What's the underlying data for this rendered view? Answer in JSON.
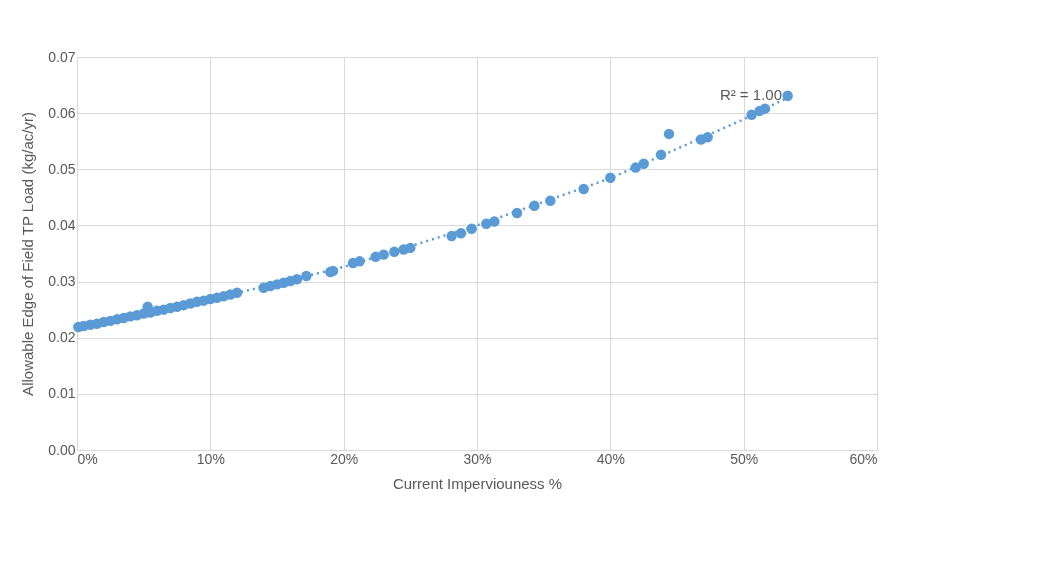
{
  "chart_data": {
    "type": "scatter",
    "xlabel": "Current Imperviouness %",
    "ylabel": "Allowable Edge of Field TP Load (kg/ac/yr)",
    "series": [
      {
        "marker": "circle",
        "color": "#5b9bd5",
        "x": [
          0.1,
          0.5,
          1,
          1.5,
          2,
          2.5,
          3,
          3.5,
          4,
          4.5,
          5,
          5.3,
          5.5,
          6,
          6.5,
          7,
          7.5,
          8,
          8.5,
          9,
          9.5,
          10,
          10.5,
          11,
          11.5,
          12,
          14,
          14.5,
          15,
          15.5,
          16,
          16.5,
          17.2,
          19,
          19.2,
          20.7,
          21.2,
          22.4,
          23,
          23.8,
          24.5,
          25,
          28.1,
          28.8,
          29.6,
          30.7,
          31.3,
          33,
          34.3,
          35.5,
          38,
          40,
          41.9,
          42.5,
          43.8,
          44.4,
          46.8,
          47.3,
          50.6,
          51.2,
          51.6,
          53.3
        ],
        "values": [
          0.0219,
          0.0221,
          0.0223,
          0.0225,
          0.0228,
          0.023,
          0.0233,
          0.0235,
          0.0238,
          0.024,
          0.0243,
          0.0255,
          0.0245,
          0.0248,
          0.025,
          0.0253,
          0.0255,
          0.0258,
          0.0261,
          0.0264,
          0.0266,
          0.0269,
          0.0271,
          0.0274,
          0.0277,
          0.028,
          0.0289,
          0.0292,
          0.0295,
          0.0298,
          0.0301,
          0.0304,
          0.031,
          0.0317,
          0.0319,
          0.0333,
          0.0336,
          0.0344,
          0.0348,
          0.0353,
          0.0357,
          0.036,
          0.0381,
          0.0386,
          0.0394,
          0.0403,
          0.0407,
          0.0422,
          0.0435,
          0.0444,
          0.0465,
          0.0485,
          0.0503,
          0.051,
          0.0526,
          0.0563,
          0.0553,
          0.0557,
          0.0597,
          0.0604,
          0.0608,
          0.0631
        ]
      },
      {
        "type": "line",
        "marker": "none",
        "color": "#5b9bd5",
        "line_style": "dotted",
        "x": [
          0,
          10,
          20,
          30,
          40,
          50,
          53.5
        ],
        "values": [
          0.0218,
          0.0268,
          0.0326,
          0.04,
          0.0484,
          0.0589,
          0.063
        ]
      }
    ],
    "xlim": [
      0,
      60
    ],
    "ylim": [
      0,
      0.07
    ],
    "xticks": [
      {
        "value": 0,
        "label": "0%"
      },
      {
        "value": 10,
        "label": "10%"
      },
      {
        "value": 20,
        "label": "20%"
      },
      {
        "value": 30,
        "label": "30%"
      },
      {
        "value": 40,
        "label": "40%"
      },
      {
        "value": 50,
        "label": "50%"
      },
      {
        "value": 60,
        "label": "60%"
      }
    ],
    "yticks": [
      {
        "value": 0,
        "label": "0.00"
      },
      {
        "value": 0.01,
        "label": "0.01"
      },
      {
        "value": 0.02,
        "label": "0.02"
      },
      {
        "value": 0.03,
        "label": "0.03"
      },
      {
        "value": 0.04,
        "label": "0.04"
      },
      {
        "value": 0.05,
        "label": "0.05"
      },
      {
        "value": 0.06,
        "label": "0.06"
      },
      {
        "value": 0.07,
        "label": "0.07"
      }
    ],
    "annotations": [
      "R² = 1.00"
    ],
    "grid": true
  }
}
